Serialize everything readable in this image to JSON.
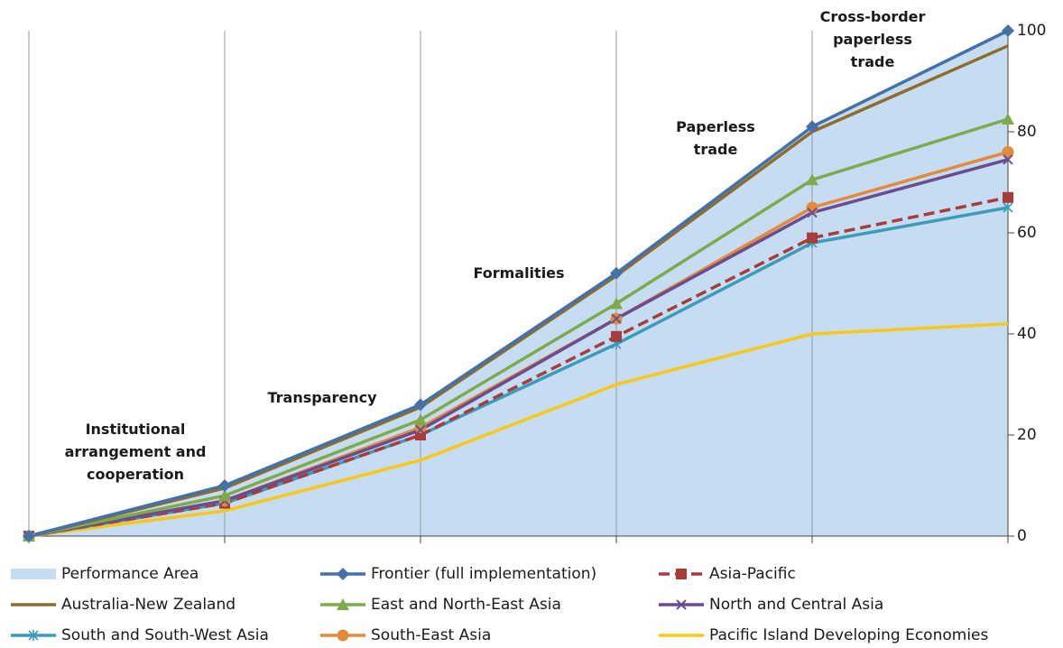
{
  "chart_data": {
    "type": "line",
    "categories": [
      null,
      null,
      null,
      null,
      null,
      null
    ],
    "ylim": [
      0,
      100
    ],
    "yticks": [
      0,
      20,
      40,
      60,
      80,
      100
    ],
    "grid": "vertical",
    "legend": "bottom",
    "annotations": [
      "Institutional arrangement and cooperation",
      "Transparency",
      "Formalities",
      "Paperless trade",
      "Cross-border paperless trade"
    ],
    "area": {
      "name": "Performance Area",
      "color": "#c6dcf2",
      "values": [
        0,
        10,
        26,
        52,
        81,
        100
      ]
    },
    "series": [
      {
        "name": "Frontier (full implementation)",
        "color": "#4471a8",
        "marker": "diamond",
        "values": [
          0,
          10,
          26,
          52,
          81,
          100
        ]
      },
      {
        "name": "Asia-Pacific",
        "color": "#a83c3a",
        "marker": "square",
        "dash": true,
        "values": [
          0,
          6.5,
          20,
          39.5,
          59,
          67
        ]
      },
      {
        "name": "Australia-New Zealand",
        "color": "#8c6d2c",
        "values": [
          0,
          9.5,
          25.5,
          51.5,
          80,
          97
        ]
      },
      {
        "name": "East and North-East Asia",
        "color": "#7dab4c",
        "marker": "triangle",
        "values": [
          0,
          8,
          23,
          46,
          70.5,
          82.5
        ]
      },
      {
        "name": "North and Central Asia",
        "color": "#6b4c90",
        "marker": "x",
        "values": [
          0,
          7,
          21,
          43,
          64,
          74.5
        ]
      },
      {
        "name": "South and South-West Asia",
        "color": "#3a9cb8",
        "marker": "asterisk",
        "values": [
          0,
          6.5,
          20,
          38,
          58,
          65
        ]
      },
      {
        "name": "South-East Asia",
        "color": "#e38b3c",
        "marker": "circle",
        "values": [
          0,
          7,
          21.5,
          43,
          65,
          76
        ]
      },
      {
        "name": "Pacific Island Developing Economies",
        "color": "#f7c81a",
        "values": [
          0,
          5,
          15,
          30,
          40,
          42
        ]
      }
    ]
  }
}
